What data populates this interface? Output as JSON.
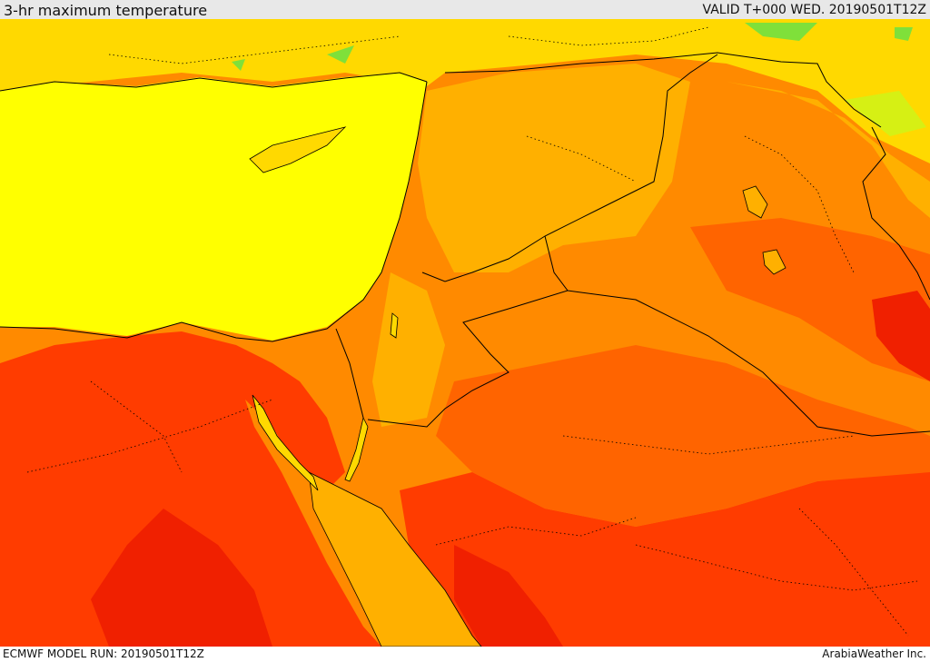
{
  "header": {
    "title": "3-hr maximum temperature",
    "valid": "VALID T+000 WED. 20190501T12Z"
  },
  "footer": {
    "model_run": "ECMWF MODEL RUN: 20190501T12Z",
    "credit": "ArabiaWeather Inc."
  },
  "colors": {
    "green": "#7fe03a",
    "yellow_green": "#d6f014",
    "yellow": "#ffff00",
    "yellow_orange": "#ffd900",
    "light_orange": "#ffb000",
    "orange": "#ff8a00",
    "dark_orange": "#ff6400",
    "red_orange": "#ff3c00",
    "red": "#f02000",
    "border": "#000000"
  }
}
